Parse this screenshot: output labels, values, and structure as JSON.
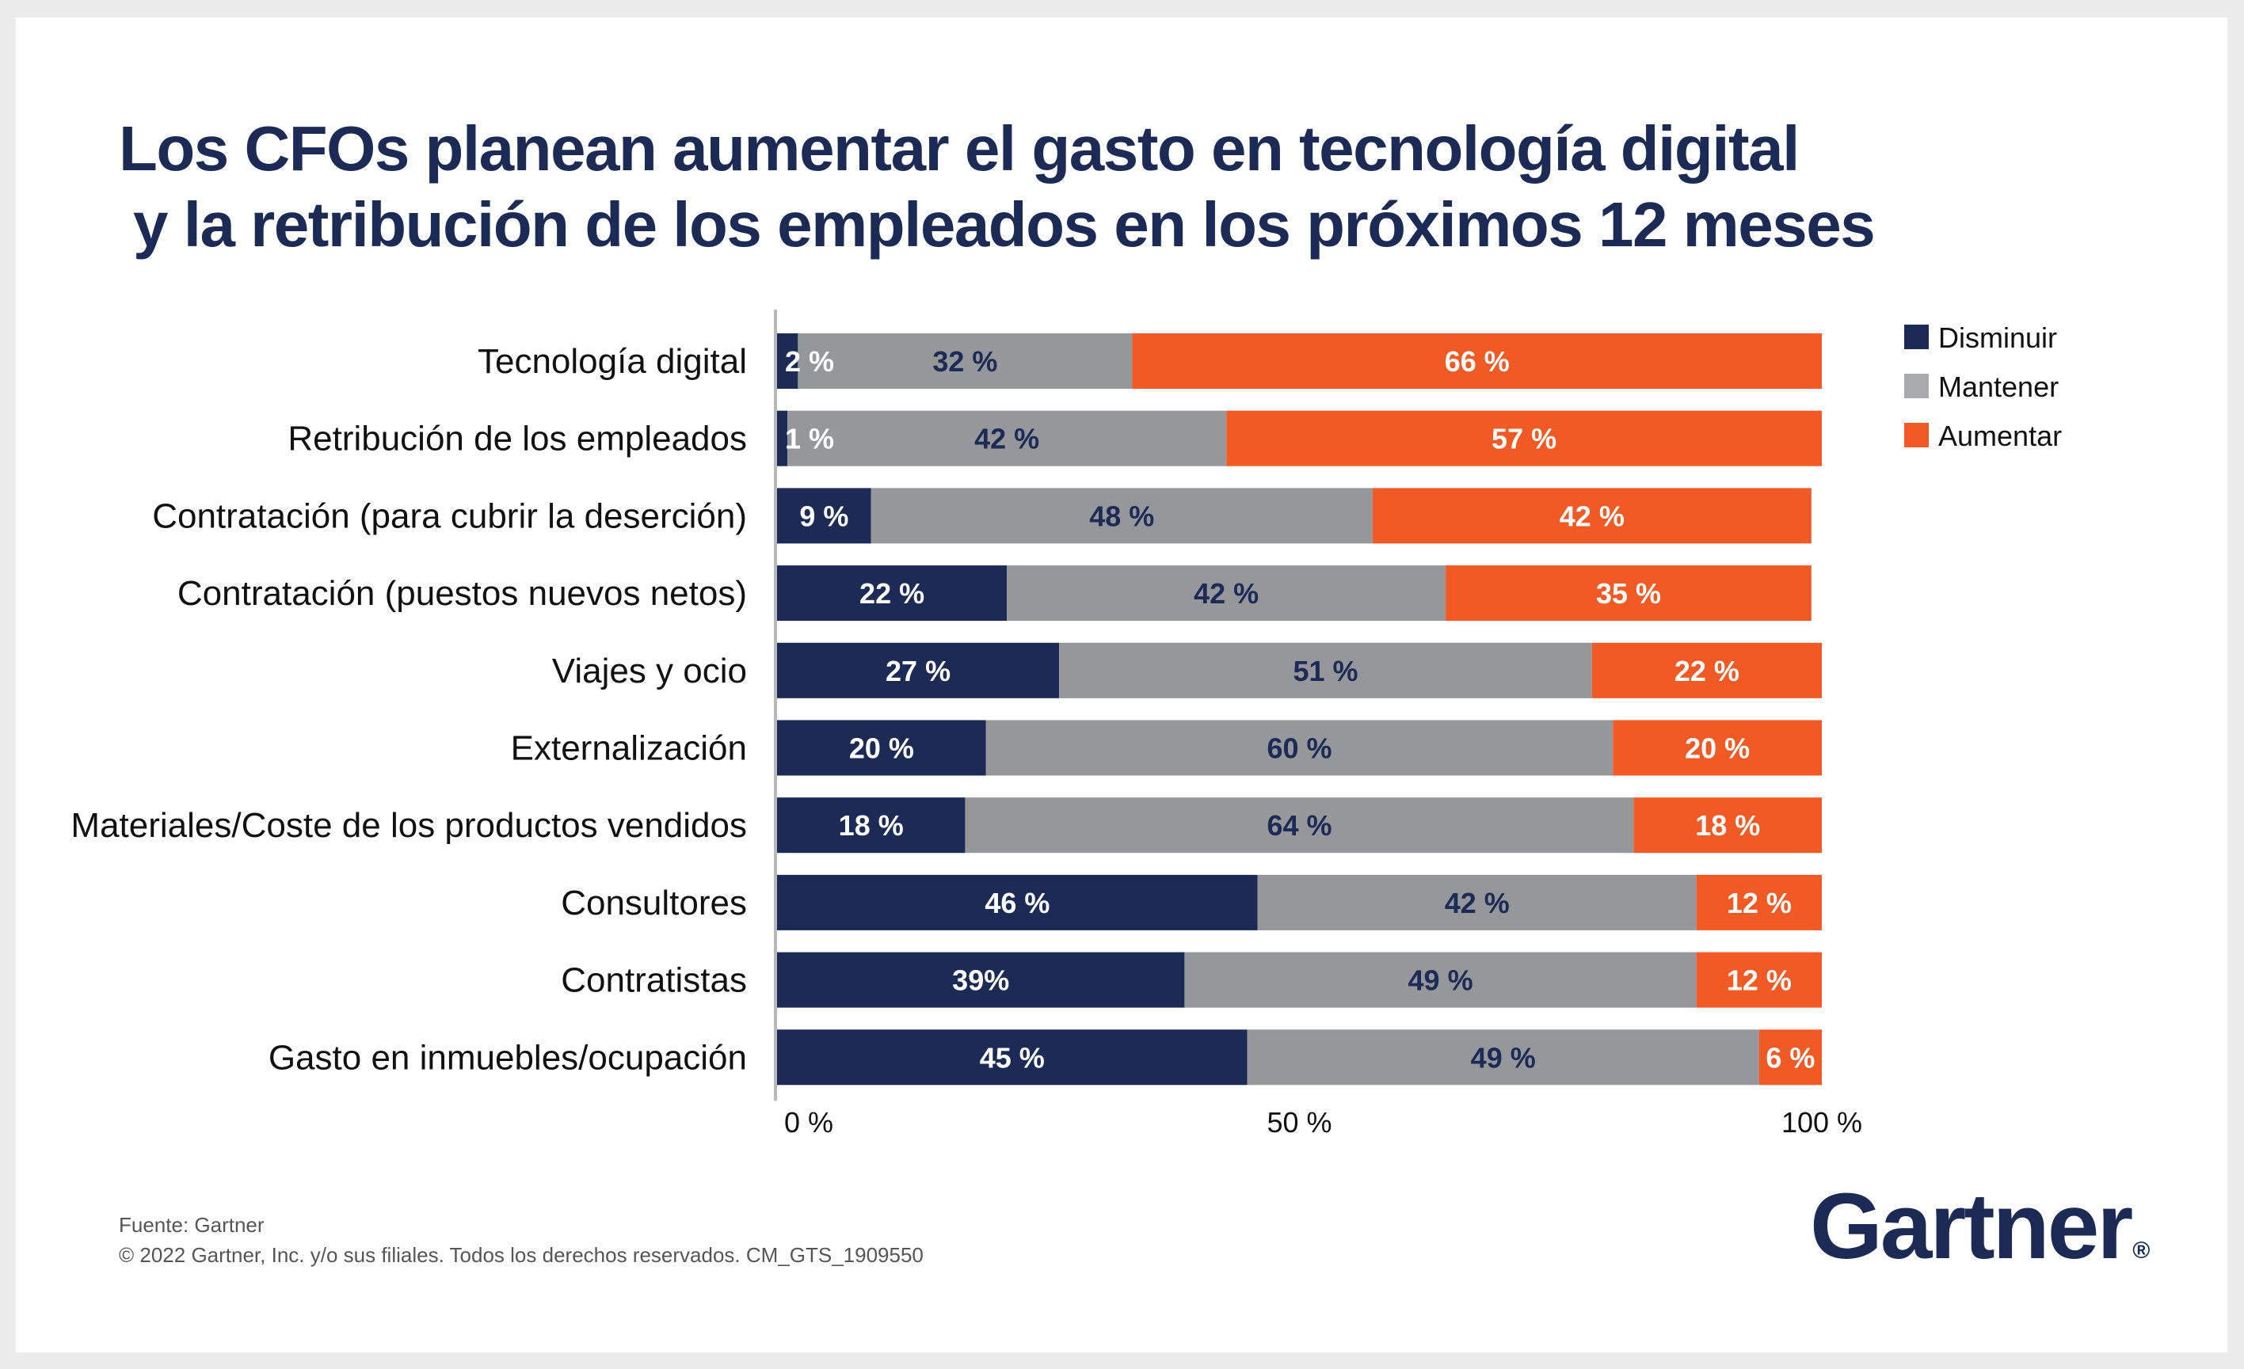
{
  "page": {
    "title_line1": "Los CFOs planean aumentar el gasto en tecnología digital",
    "title_line2": "y la retribución de los empleados en los próximos 12 meses",
    "footer_source": "Fuente: Gartner",
    "footer_copyright": "© 2022 Gartner, Inc. y/o sus filiales. Todos los derechos reservados. CM_GTS_1909550",
    "logo_text": "Gartner",
    "logo_mark": "®"
  },
  "colors": {
    "disminuir": "#1b2b55",
    "mantener": "#96979b",
    "mantener_legend": "#a8abab",
    "aumentar": "#f15a24",
    "text_on_dark": "#ffffff",
    "text_on_gray": "#1b2b55",
    "axis": "#b9b9b9"
  },
  "chart_data": {
    "type": "bar",
    "orientation": "horizontal",
    "stacked": true,
    "title": "Los CFOs planean aumentar el gasto en tecnología digital y la retribución de los empleados en los próximos 12 meses",
    "xlabel": "",
    "ylabel": "",
    "xlim": [
      0,
      100
    ],
    "x_ticks": [
      0,
      50,
      100
    ],
    "x_tick_labels": [
      "0 %",
      "50 %",
      "100 %"
    ],
    "grid": false,
    "legend_position": "top-right",
    "categories": [
      "Tecnología digital",
      "Retribución de los empleados",
      "Contratación (para cubrir la deserción)",
      "Contratación (puestos nuevos netos)",
      "Viajes y ocio",
      "Externalización",
      "Materiales/Coste de los productos vendidos",
      "Consultores",
      "Contratistas",
      "Gasto en inmuebles/ocupación"
    ],
    "series": [
      {
        "name": "Disminuir",
        "values": [
          2,
          1,
          9,
          22,
          27,
          20,
          18,
          46,
          39,
          45
        ],
        "labels": [
          "2 %",
          "1 %",
          "9 %",
          "22 %",
          "27 %",
          "20 %",
          "18 %",
          "46 %",
          "39%",
          "45 %"
        ]
      },
      {
        "name": "Mantener",
        "values": [
          32,
          42,
          48,
          42,
          51,
          60,
          64,
          42,
          49,
          49
        ],
        "labels": [
          "32 %",
          "42 %",
          "48 %",
          "42 %",
          "51 %",
          "60 %",
          "64 %",
          "42 %",
          "49 %",
          "49 %"
        ]
      },
      {
        "name": "Aumentar",
        "values": [
          66,
          57,
          42,
          35,
          22,
          20,
          18,
          12,
          12,
          6
        ],
        "labels": [
          "66 %",
          "57 %",
          "42 %",
          "35 %",
          "22 %",
          "20 %",
          "18 %",
          "12 %",
          "12 %",
          "6 %"
        ]
      }
    ]
  }
}
